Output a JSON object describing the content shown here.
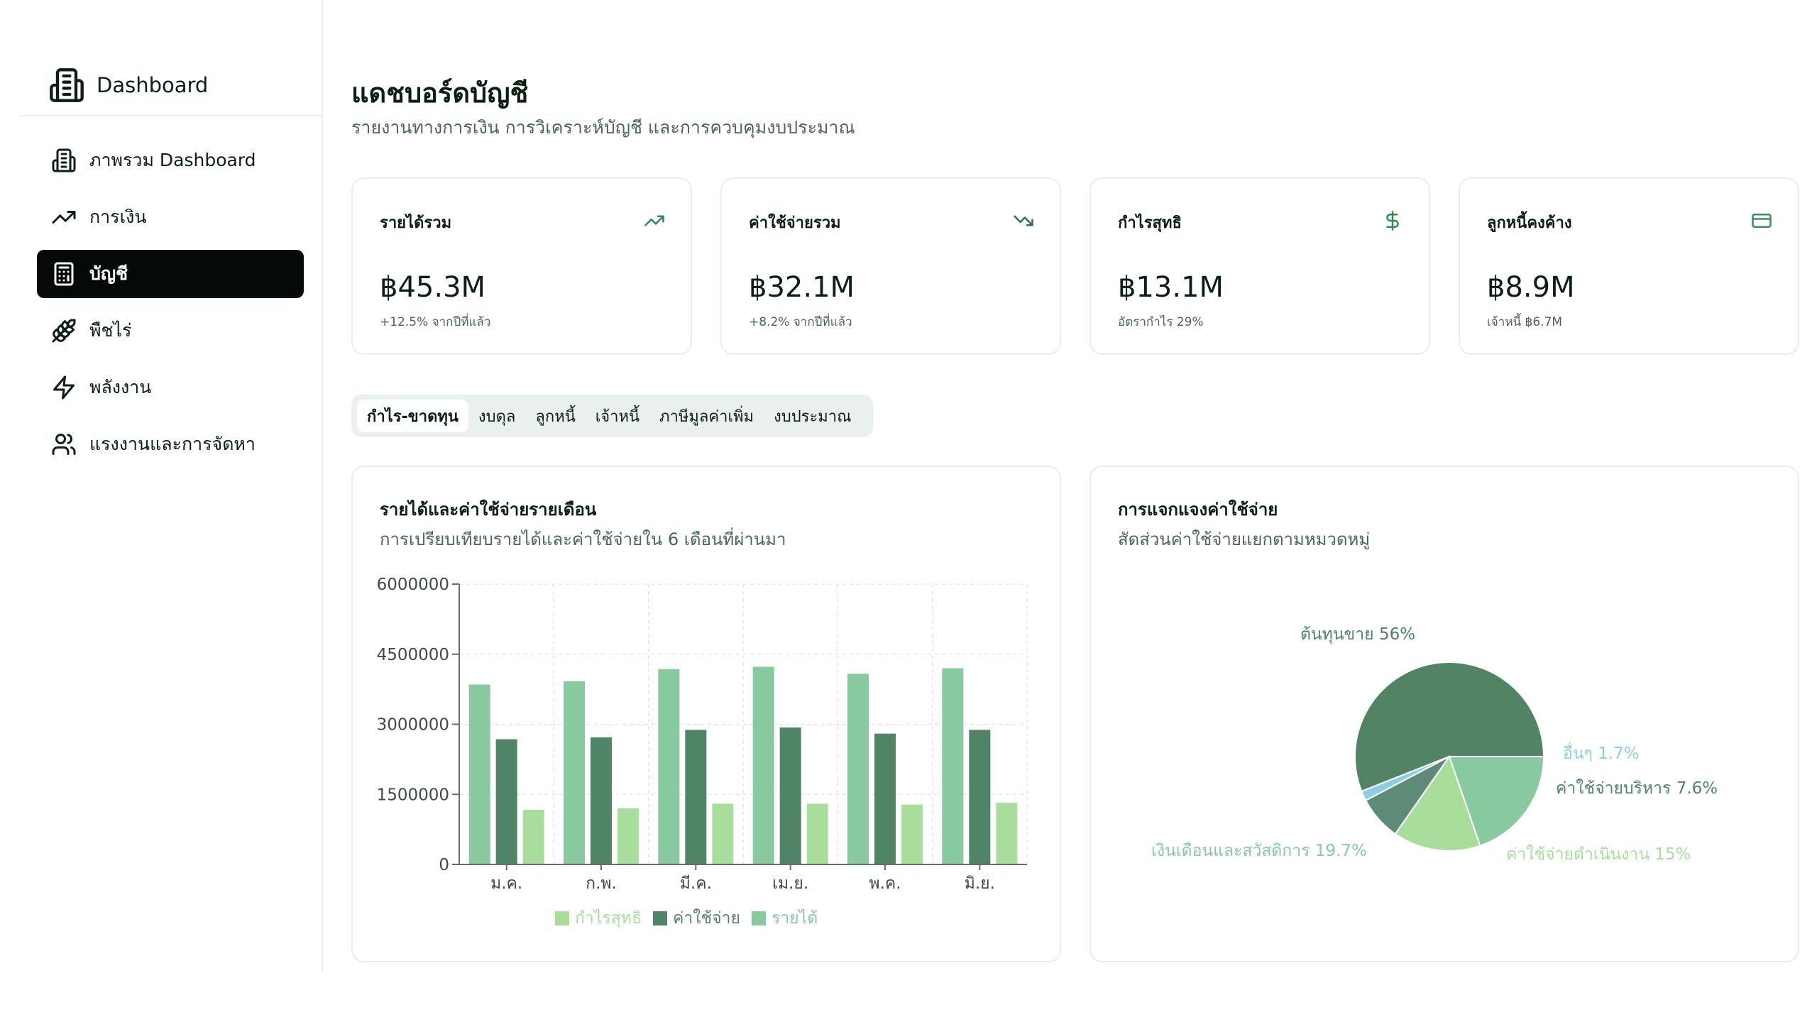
{
  "sidebar": {
    "brand": "Dashboard",
    "items": [
      {
        "label": "ภาพรวม Dashboard",
        "icon": "building-icon",
        "active": false
      },
      {
        "label": "การเงิน",
        "icon": "trending-up-icon",
        "active": false
      },
      {
        "label": "บัญชี",
        "icon": "calculator-icon",
        "active": true
      },
      {
        "label": "พืชไร่",
        "icon": "wheat-icon",
        "active": false
      },
      {
        "label": "พลังงาน",
        "icon": "lightning-icon",
        "active": false
      },
      {
        "label": "แรงงานและการจัดหา",
        "icon": "users-icon",
        "active": false
      }
    ]
  },
  "header": {
    "title": "แดชบอร์ดบัญชี",
    "subtitle": "รายงานทางการเงิน การวิเคราะห์บัญชี และการควบคุมงบประมาณ"
  },
  "cards": [
    {
      "label": "รายได้รวม",
      "value": "฿45.3M",
      "note": "+12.5% จากปีที่แล้ว",
      "icon": "trending-up-icon"
    },
    {
      "label": "ค่าใช้จ่ายรวม",
      "value": "฿32.1M",
      "note": "+8.2% จากปีที่แล้ว",
      "icon": "trending-down-icon"
    },
    {
      "label": "กำไรสุทธิ",
      "value": "฿13.1M",
      "note": "อัตรากำไร 29%",
      "icon": "dollar-icon"
    },
    {
      "label": "ลูกหนี้คงค้าง",
      "value": "฿8.9M",
      "note": "เจ้าหนี้ ฿6.7M",
      "icon": "credit-card-icon"
    }
  ],
  "tabs": [
    {
      "label": "กำไร-ขาดทุน",
      "active": true
    },
    {
      "label": "งบดุล",
      "active": false
    },
    {
      "label": "ลูกหนี้",
      "active": false
    },
    {
      "label": "เจ้าหนี้",
      "active": false
    },
    {
      "label": "ภาษีมูลค่าเพิ่ม",
      "active": false
    },
    {
      "label": "งบประมาณ",
      "active": false
    }
  ],
  "colors": {
    "revenue": "#88c99f",
    "expense": "#4f8466",
    "profit": "#a8dd9c",
    "pie_cogs": "#518464",
    "pie_salary": "#88c99f",
    "pie_operating": "#a8dd9c",
    "pie_admin": "#5e8b78",
    "pie_other": "#8ccfe0"
  },
  "bar_panel": {
    "title": "รายได้และค่าใช้จ่ายรายเดือน",
    "subtitle": "การเปรียบเทียบรายได้และค่าใช้จ่ายใน 6 เดือนที่ผ่านมา"
  },
  "pie_panel": {
    "title": "การแจกแจงค่าใช้จ่าย",
    "subtitle": "สัดส่วนค่าใช้จ่ายแยกตามหมวดหมู่"
  },
  "chart_data": [
    {
      "type": "bar",
      "title": "รายได้และค่าใช้จ่ายรายเดือน",
      "categories": [
        "ม.ค.",
        "ก.พ.",
        "มี.ค.",
        "เม.ย.",
        "พ.ค.",
        "มิ.ย."
      ],
      "series": [
        {
          "name": "รายได้",
          "values": [
            3850000,
            3920000,
            4180000,
            4230000,
            4080000,
            4200000
          ]
        },
        {
          "name": "ค่าใช้จ่าย",
          "values": [
            2680000,
            2720000,
            2880000,
            2930000,
            2800000,
            2880000
          ]
        },
        {
          "name": "กำไรสุทธิ",
          "values": [
            1170000,
            1200000,
            1300000,
            1300000,
            1280000,
            1320000
          ]
        }
      ],
      "yticks": [
        "0",
        "1500000",
        "3000000",
        "4500000",
        "6000000"
      ],
      "ylim": [
        0,
        6000000
      ],
      "grid": true,
      "legend_order": [
        "กำไรสุทธิ",
        "ค่าใช้จ่าย",
        "รายได้"
      ],
      "legend_position": "bottom"
    },
    {
      "type": "pie",
      "title": "การแจกแจงค่าใช้จ่าย",
      "slices": [
        {
          "name": "ต้นทุนขาย",
          "value": 56,
          "label": "ต้นทุนขาย 56%"
        },
        {
          "name": "อื่นๆ",
          "value": 1.7,
          "label": "อื่นๆ 1.7%"
        },
        {
          "name": "ค่าใช้จ่ายบริหาร",
          "value": 7.6,
          "label": "ค่าใช้จ่ายบริหาร 7.6%"
        },
        {
          "name": "ค่าใช้จ่ายดำเนินงาน",
          "value": 15,
          "label": "ค่าใช้จ่ายดำเนินงาน 15%"
        },
        {
          "name": "เงินเดือนและสวัสดิการ",
          "value": 19.7,
          "label": "เงินเดือนและสวัสดิการ 19.7%"
        }
      ]
    }
  ]
}
